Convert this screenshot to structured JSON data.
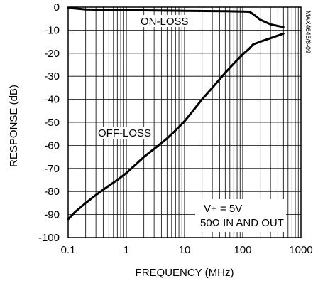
{
  "chart_data": {
    "type": "line",
    "xscale": "log",
    "xlim": [
      0.1,
      1000
    ],
    "ylim": [
      -100,
      0
    ],
    "xlabel": "FREQUENCY (MHz)",
    "ylabel": "RESPONSE (dB)",
    "x_ticks": [
      {
        "value": 0.1,
        "label": "0.1"
      },
      {
        "value": 1,
        "label": "1"
      },
      {
        "value": 10,
        "label": "10"
      },
      {
        "value": 100,
        "label": "100"
      },
      {
        "value": 1000,
        "label": "1000"
      }
    ],
    "y_ticks": [
      {
        "value": 0,
        "label": "0"
      },
      {
        "value": -10,
        "label": "-10"
      },
      {
        "value": -20,
        "label": "-20"
      },
      {
        "value": -30,
        "label": "-30"
      },
      {
        "value": -40,
        "label": "-40"
      },
      {
        "value": -50,
        "label": "-50"
      },
      {
        "value": -60,
        "label": "-60"
      },
      {
        "value": -70,
        "label": "-70"
      },
      {
        "value": -80,
        "label": "-80"
      },
      {
        "value": -90,
        "label": "-90"
      },
      {
        "value": -100,
        "label": "-100"
      }
    ],
    "grid": true,
    "series": [
      {
        "name": "ON-LOSS",
        "x": [
          0.1,
          0.15,
          0.2,
          0.5,
          1,
          5,
          10,
          50,
          100,
          130,
          150,
          200,
          300,
          500
        ],
        "y": [
          -0.3,
          -0.7,
          -1.0,
          -1.2,
          -1.3,
          -1.5,
          -1.6,
          -1.8,
          -1.9,
          -2.0,
          -3.0,
          -5.5,
          -7.5,
          -8.7
        ]
      },
      {
        "name": "OFF-LOSS",
        "x": [
          0.1,
          0.13,
          0.2,
          0.3,
          0.5,
          0.7,
          1,
          1.5,
          2,
          3,
          5,
          7,
          10,
          15,
          20,
          30,
          50,
          70,
          100,
          130,
          150,
          200,
          300,
          500
        ],
        "y": [
          -92,
          -89,
          -85,
          -81.5,
          -77.5,
          -75,
          -72,
          -68,
          -65,
          -61.5,
          -57,
          -53.5,
          -49.5,
          -44,
          -40,
          -35,
          -28.5,
          -24.5,
          -20.5,
          -18,
          -16.2,
          -15,
          -13.5,
          -11.5
        ]
      }
    ],
    "annotations": {
      "on_loss": "ON-LOSS",
      "off_loss": "OFF-LOSS",
      "condition_line1": "V+ = 5V",
      "condition_line2": "50Ω IN AND OUT",
      "figure_code": "MAX4645/6-09"
    }
  }
}
